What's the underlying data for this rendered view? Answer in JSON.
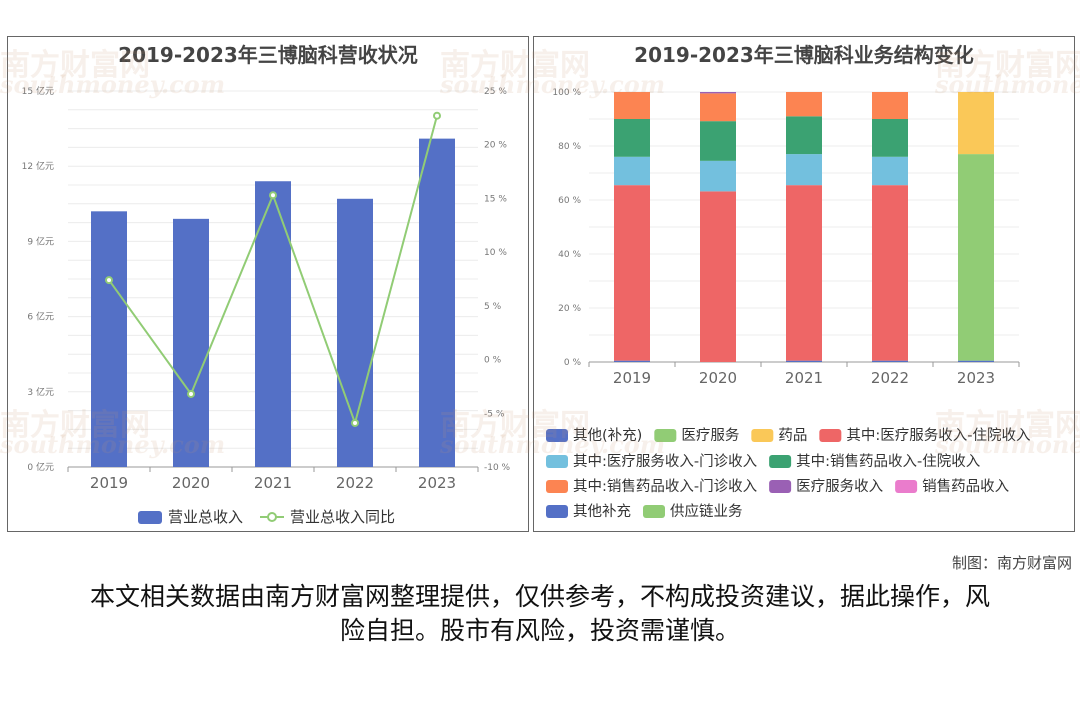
{
  "charts": [
    {
      "title": "2019-2023年三博脑科营收状况",
      "left_axis_ticks": [
        "0 亿元",
        "3 亿元",
        "6 亿元",
        "9 亿元",
        "12 亿元",
        "15 亿元"
      ],
      "right_axis_ticks": [
        "-10 %",
        "-5 %",
        "0 %",
        "5 %",
        "10 %",
        "15 %",
        "20 %",
        "25 %"
      ],
      "legend": [
        "营业总收入",
        "营业总收入同比"
      ]
    },
    {
      "title": "2019-2023年三博脑科业务结构变化",
      "y_axis_ticks": [
        "0 %",
        "20 %",
        "40 %",
        "60 %",
        "80 %",
        "100 %"
      ],
      "legend": [
        "其他(补充)",
        "医疗服务",
        "药品",
        "其中:医疗服务收入-住院收入",
        "其中:医疗服务收入-门诊收入",
        "其中:销售药品收入-住院收入",
        "其中:销售药品收入-门诊收入",
        "医疗服务收入",
        "销售药品收入",
        "其他补充",
        "供应链业务"
      ]
    }
  ],
  "chart_data": [
    {
      "type": "bar",
      "title": "2019-2023年三博脑科营收状况",
      "categories": [
        "2019",
        "2020",
        "2021",
        "2022",
        "2023"
      ],
      "series": [
        {
          "name": "营业总收入",
          "kind": "bar",
          "axis": "left",
          "unit": "亿元",
          "values": [
            10.2,
            9.9,
            11.4,
            10.7,
            13.1
          ]
        },
        {
          "name": "营业总收入同比",
          "kind": "line",
          "axis": "right",
          "unit": "%",
          "values": [
            7.4,
            -3.2,
            15.3,
            -5.9,
            22.7
          ]
        }
      ],
      "ylim_left": [
        0,
        15
      ],
      "ylim_right": [
        -10,
        25
      ],
      "colors": {
        "bar": "#5470c6",
        "line": "#91cc75"
      }
    },
    {
      "type": "bar",
      "stacked": true,
      "title": "2019-2023年三博脑科业务结构变化",
      "categories": [
        "2019",
        "2020",
        "2021",
        "2022",
        "2023"
      ],
      "ylim": [
        0,
        100
      ],
      "unit": "%",
      "series": [
        {
          "name": "其他(补充)",
          "color": "#5470c6",
          "values": [
            0.5,
            0,
            0.5,
            0.5,
            0
          ]
        },
        {
          "name": "医疗服务",
          "color": "#91cc75",
          "values": [
            0,
            0,
            0,
            0,
            0
          ]
        },
        {
          "name": "药品",
          "color": "#fac858",
          "values": [
            0,
            0,
            0,
            0,
            0
          ]
        },
        {
          "name": "其中:医疗服务收入-住院收入",
          "color": "#ee6666",
          "values": [
            65,
            63.2,
            65,
            65,
            0
          ]
        },
        {
          "name": "其中:医疗服务收入-门诊收入",
          "color": "#73c0de",
          "values": [
            10.5,
            11.3,
            11.5,
            10.5,
            0
          ]
        },
        {
          "name": "其中:销售药品收入-住院收入",
          "color": "#3ba272",
          "values": [
            14,
            14.7,
            14,
            14,
            0
          ]
        },
        {
          "name": "其中:销售药品收入-门诊收入",
          "color": "#fc8452",
          "values": [
            10,
            10.3,
            9,
            10,
            0
          ]
        },
        {
          "name": "医疗服务收入",
          "color": "#9a60b4",
          "values": [
            0,
            0.5,
            0,
            0,
            0
          ]
        },
        {
          "name": "销售药品收入",
          "color": "#ea7ccc",
          "values": [
            0,
            0,
            0,
            0,
            0
          ]
        },
        {
          "name": "其他补充",
          "color": "#5470c6",
          "values": [
            0,
            0,
            0,
            0,
            0.5
          ]
        },
        {
          "name": "供应链业务",
          "color": "#91cc75",
          "values": [
            0,
            0,
            0,
            0,
            76.5
          ]
        },
        {
          "name": "药品",
          "color": "#fac858",
          "values": [
            0,
            0,
            0,
            0,
            23
          ]
        }
      ]
    }
  ],
  "footer": {
    "credit": "制图：南方财富网",
    "disclaimer": "本文相关数据由南方财富网整理提供，仅供参考，不构成投资建议，据此操作，风险自担。股市有风险，投资需谨慎。"
  },
  "watermark": {
    "cn": "南方财富网",
    "en": "southmoney.com"
  }
}
